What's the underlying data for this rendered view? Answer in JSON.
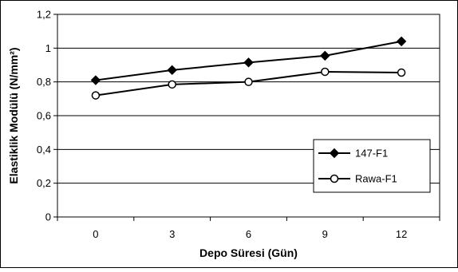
{
  "chart_data": {
    "type": "line",
    "title": "",
    "xlabel": "Depo Süresi (Gün)",
    "ylabel": "Elastiklik Modülü (N/mm²)",
    "categories": [
      "0",
      "3",
      "6",
      "9",
      "12"
    ],
    "ylim": [
      0,
      1.2
    ],
    "yticks": [
      "0",
      "0,2",
      "0,4",
      "0,6",
      "0,8",
      "1",
      "1,2"
    ],
    "grid": "horizontal",
    "legend_position": "lower-right",
    "series": [
      {
        "name": "147-F1",
        "values": [
          0.81,
          0.87,
          0.915,
          0.955,
          1.04
        ],
        "marker": "filled-diamond",
        "color": "#000000"
      },
      {
        "name": "Rawa-F1",
        "values": [
          0.72,
          0.785,
          0.8,
          0.86,
          0.855
        ],
        "marker": "open-circle",
        "color": "#000000"
      }
    ]
  }
}
